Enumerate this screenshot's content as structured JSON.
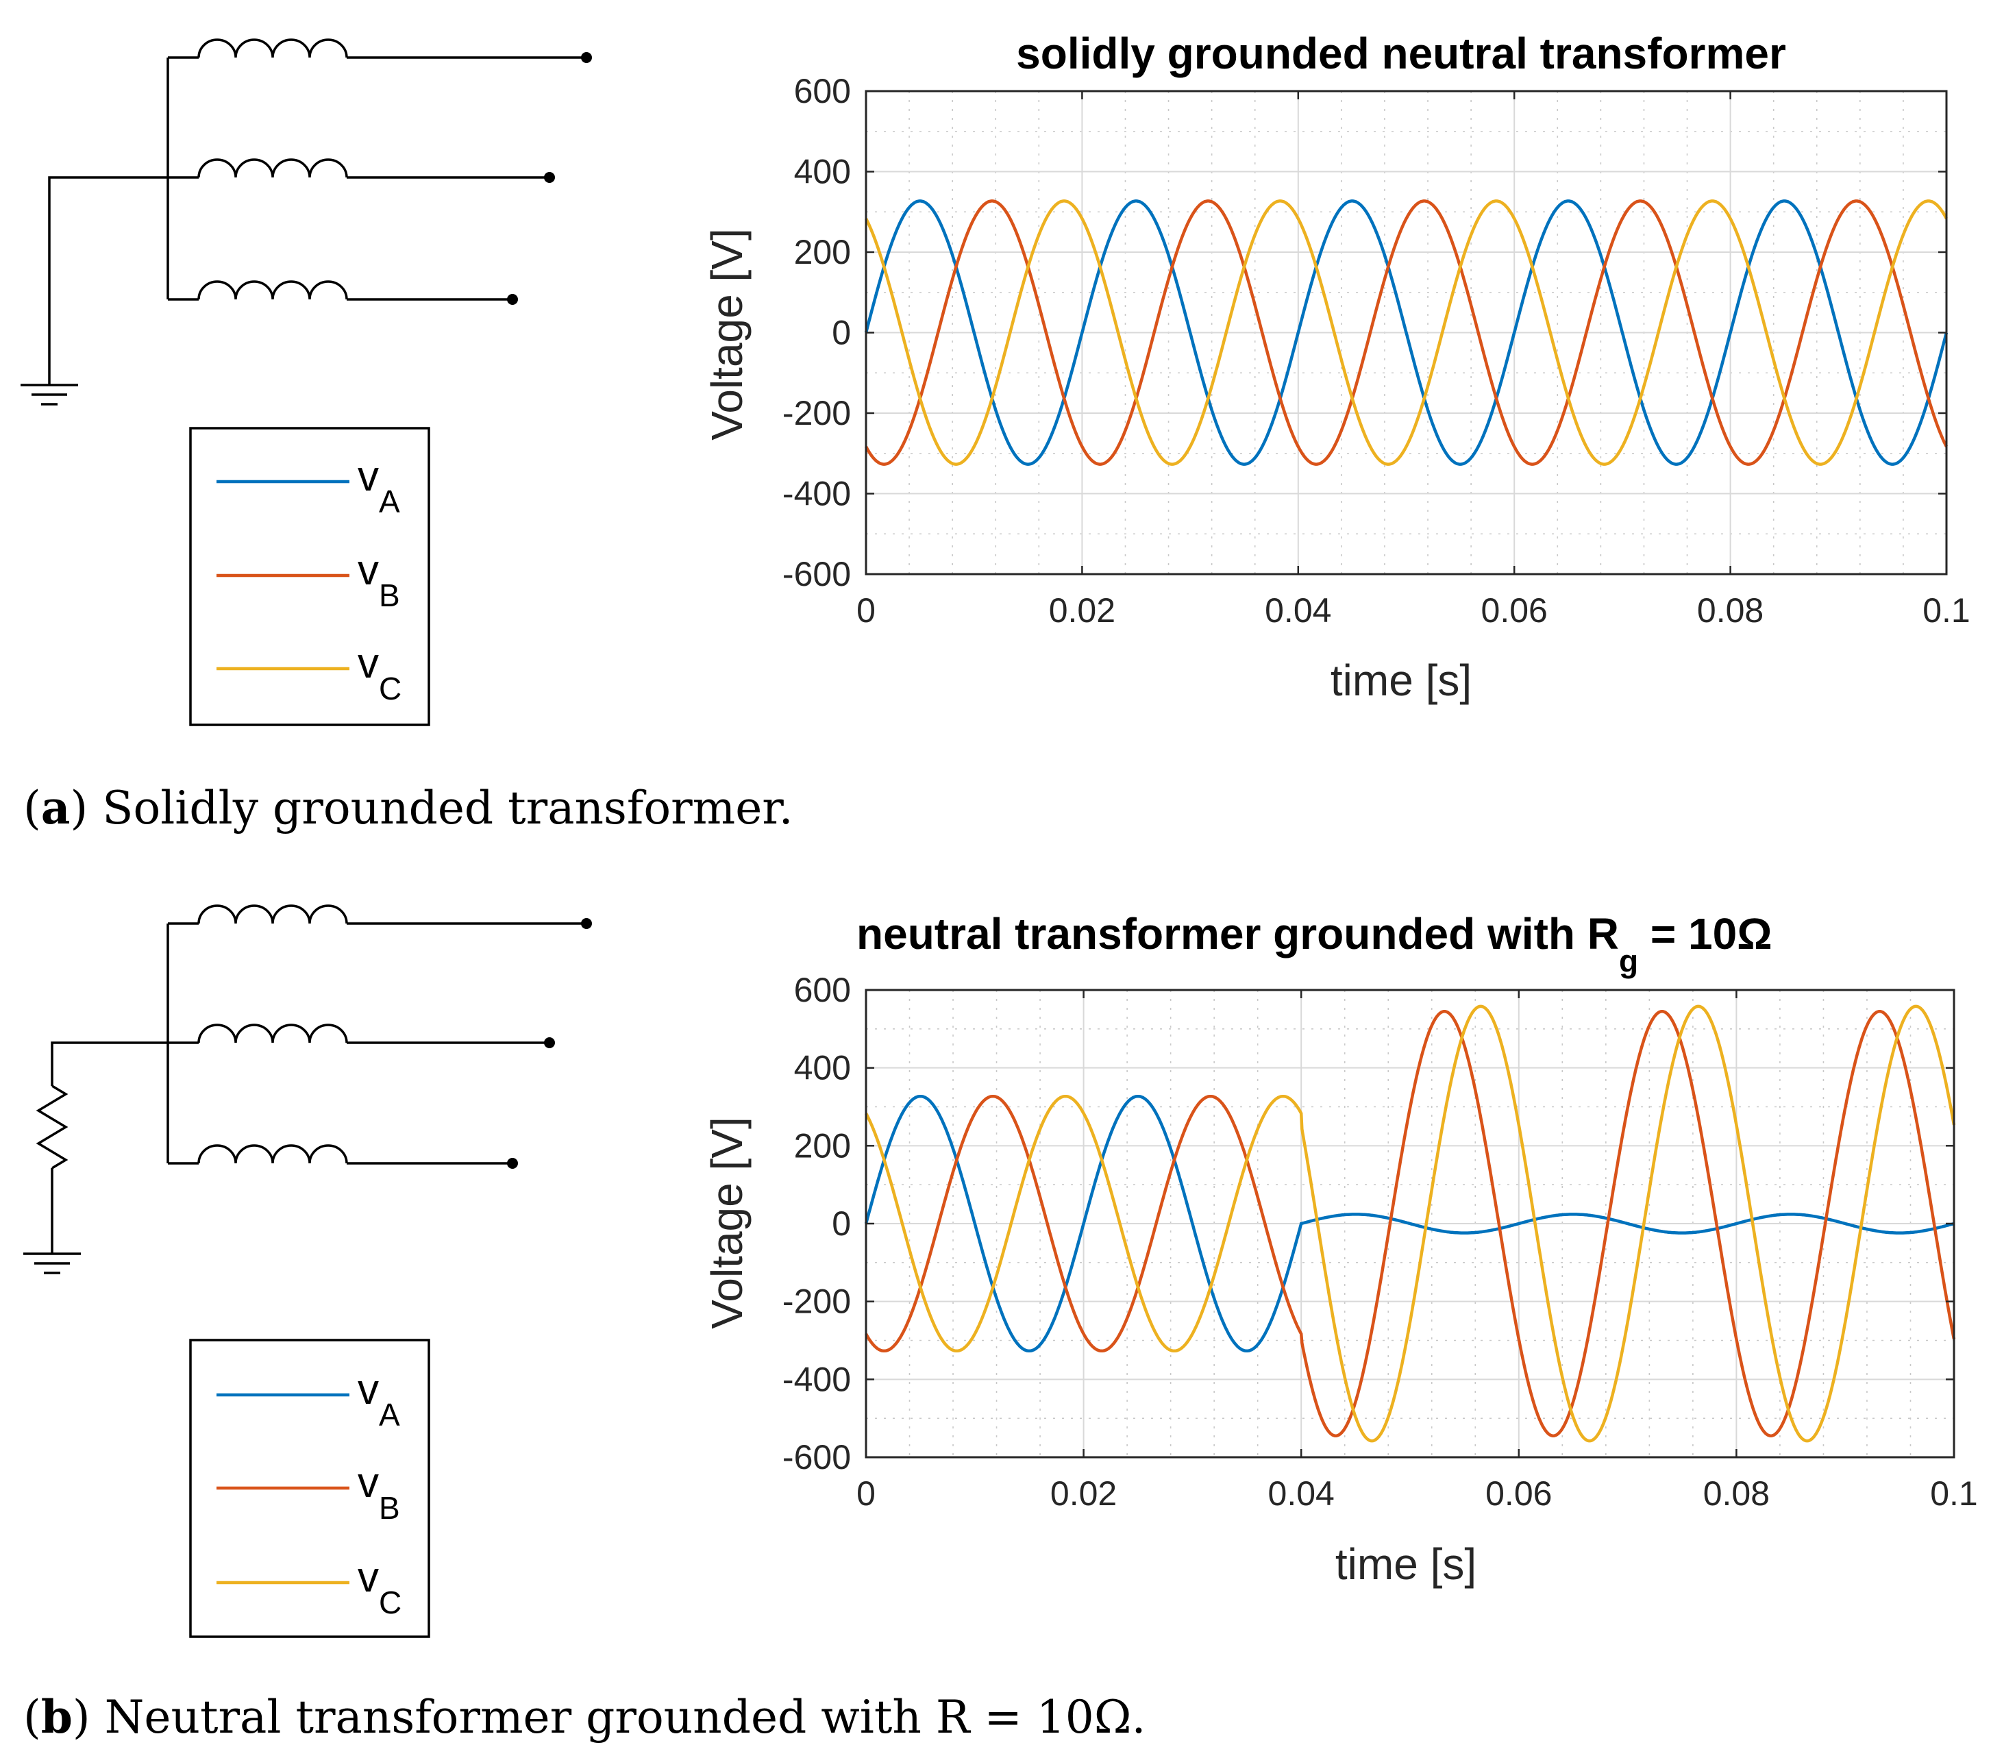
{
  "colors": {
    "vA": "#0072BD",
    "vB": "#D95319",
    "vC": "#EDB120"
  },
  "legend": {
    "items": [
      {
        "base": "v",
        "sub": "A",
        "color_key": "vA"
      },
      {
        "base": "v",
        "sub": "B",
        "color_key": "vB"
      },
      {
        "base": "v",
        "sub": "C",
        "color_key": "vC"
      }
    ]
  },
  "captions": {
    "a": {
      "label": "a",
      "text": " Solidly grounded transformer."
    },
    "b": {
      "label": "b",
      "text": " Neutral transformer grounded with R = 10Ω."
    }
  },
  "chart_data": [
    {
      "type": "line",
      "panel": "a",
      "title": "solidly grounded neutral transformer",
      "xlabel": "time [s]",
      "ylabel": "Voltage [V]",
      "xlim": [
        0,
        0.1
      ],
      "ylim": [
        -600,
        600
      ],
      "xticks": [
        0,
        0.02,
        0.04,
        0.06,
        0.08,
        0.1
      ],
      "xtick_labels": [
        "0",
        "0.02",
        "0.04",
        "0.06",
        "0.08",
        "0.1"
      ],
      "yticks": [
        600,
        400,
        200,
        0,
        -200,
        -400,
        -600
      ],
      "ytick_labels": [
        "600",
        "400",
        "200",
        "0",
        "-200",
        "-400",
        "-600"
      ],
      "grid": true,
      "frequency_hz": 50,
      "series": [
        {
          "name": "vA",
          "segments": [
            {
              "t_start": 0,
              "t_end": 0.1,
              "amplitude": 327,
              "phase_deg": 0
            }
          ]
        },
        {
          "name": "vB",
          "segments": [
            {
              "t_start": 0,
              "t_end": 0.1,
              "amplitude": 327,
              "phase_deg": -120
            }
          ]
        },
        {
          "name": "vC",
          "segments": [
            {
              "t_start": 0,
              "t_end": 0.1,
              "amplitude": 327,
              "phase_deg": 120
            }
          ]
        }
      ]
    },
    {
      "type": "line",
      "panel": "b",
      "title": "neutral transformer grounded with R",
      "title_sub": "g",
      "title_suffix": " = 10Ω",
      "xlabel": "time [s]",
      "ylabel": "Voltage [V]",
      "xlim": [
        0,
        0.1
      ],
      "ylim": [
        -600,
        600
      ],
      "xticks": [
        0,
        0.02,
        0.04,
        0.06,
        0.08,
        0.1
      ],
      "xtick_labels": [
        "0",
        "0.02",
        "0.04",
        "0.06",
        "0.08",
        "0.1"
      ],
      "yticks": [
        600,
        400,
        200,
        0,
        -200,
        -400,
        -600
      ],
      "ytick_labels": [
        "600",
        "400",
        "200",
        "0",
        "-200",
        "-400",
        "-600"
      ],
      "grid": true,
      "frequency_hz": 50,
      "series": [
        {
          "name": "vA",
          "segments": [
            {
              "t_start": 0,
              "t_end": 0.04,
              "amplitude": 327,
              "phase_deg": 0
            },
            {
              "t_start": 0.04,
              "t_end": 0.1,
              "amplitude": 24,
              "phase_deg": 0
            }
          ]
        },
        {
          "name": "vB",
          "segments": [
            {
              "t_start": 0,
              "t_end": 0.04,
              "amplitude": 327,
              "phase_deg": -120
            },
            {
              "t_start": 0.04,
              "t_end": 0.1,
              "amplitude": 545,
              "phase_deg": -147
            }
          ]
        },
        {
          "name": "vC",
          "segments": [
            {
              "t_start": 0,
              "t_end": 0.04,
              "amplitude": 327,
              "phase_deg": 120
            },
            {
              "t_start": 0.04,
              "t_end": 0.1,
              "amplitude": 558,
              "phase_deg": 153
            }
          ]
        }
      ]
    }
  ]
}
